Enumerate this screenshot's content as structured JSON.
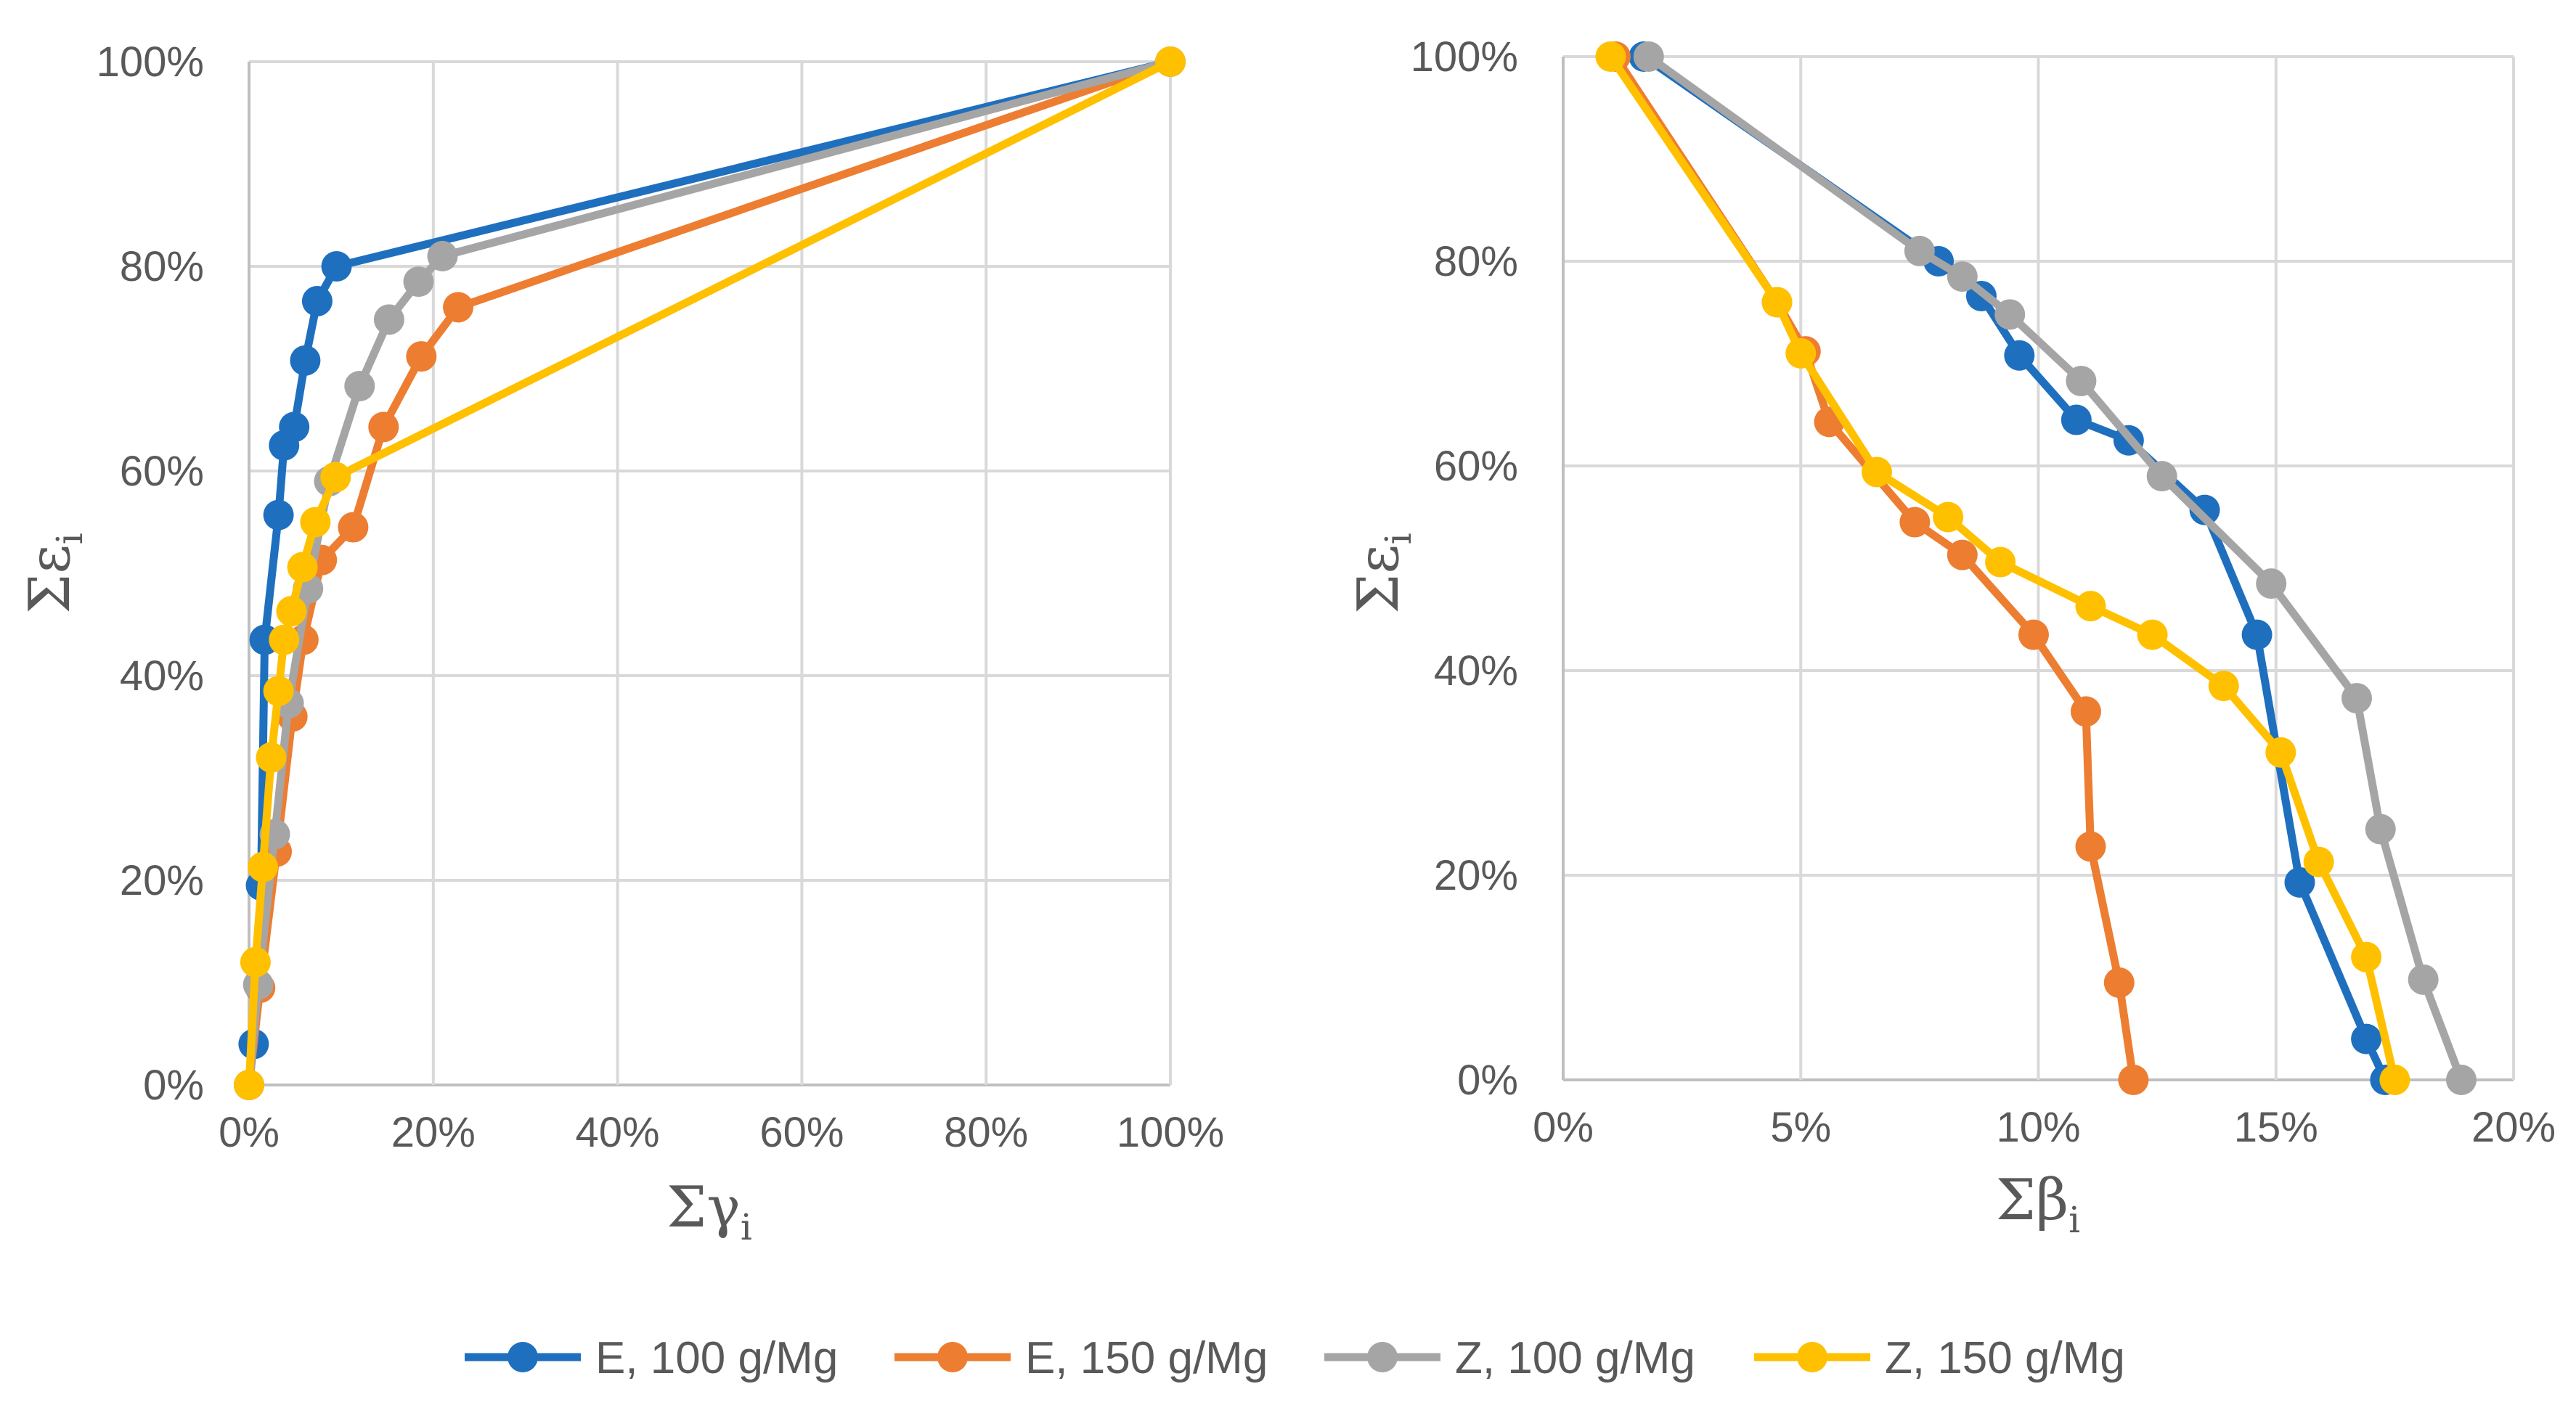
{
  "chart_data": [
    {
      "type": "line",
      "panel": "left",
      "xlabel": "Σγ",
      "xlabel_subscript": "i",
      "ylabel": "Σε",
      "ylabel_subscript": "i",
      "xlim": [
        0,
        100
      ],
      "ylim": [
        0,
        100
      ],
      "x_ticks": [
        0,
        20,
        40,
        60,
        80,
        100
      ],
      "x_tick_labels": [
        "0%",
        "20%",
        "40%",
        "60%",
        "80%",
        "100%"
      ],
      "y_ticks": [
        0,
        20,
        40,
        60,
        80,
        100
      ],
      "y_tick_labels": [
        "0%",
        "20%",
        "40%",
        "60%",
        "80%",
        "100%"
      ],
      "grid": true,
      "series": [
        {
          "name": "E, 100 g/Mg",
          "color": "#1f6fbf",
          "points": [
            [
              0,
              0
            ],
            [
              0.5,
              4
            ],
            [
              1.3,
              19.5
            ],
            [
              1.7,
              43.5
            ],
            [
              3.2,
              55.7
            ],
            [
              3.8,
              62.5
            ],
            [
              4.9,
              64.3
            ],
            [
              6.1,
              70.8
            ],
            [
              7.4,
              76.6
            ],
            [
              9.5,
              80
            ],
            [
              100,
              100
            ]
          ]
        },
        {
          "name": "E, 150 g/Mg",
          "color": "#ed7d31",
          "points": [
            [
              0,
              0
            ],
            [
              1.2,
              9.5
            ],
            [
              3.0,
              22.8
            ],
            [
              4.7,
              36.0
            ],
            [
              5.9,
              43.5
            ],
            [
              7.9,
              51.3
            ],
            [
              11.3,
              54.5
            ],
            [
              14.6,
              64.3
            ],
            [
              18.7,
              71.2
            ],
            [
              22.7,
              76.0
            ],
            [
              100,
              100
            ]
          ]
        },
        {
          "name": "Z, 100 g/Mg",
          "color": "#a5a5a5",
          "points": [
            [
              0,
              0
            ],
            [
              1.0,
              9.8
            ],
            [
              2.8,
              24.5
            ],
            [
              4.3,
              37.3
            ],
            [
              6.4,
              48.5
            ],
            [
              8.7,
              59.0
            ],
            [
              12.0,
              68.3
            ],
            [
              15.2,
              74.8
            ],
            [
              18.4,
              78.5
            ],
            [
              21.0,
              81.0
            ],
            [
              100,
              100
            ]
          ]
        },
        {
          "name": "Z, 150 g/Mg",
          "color": "#ffc000",
          "points": [
            [
              0,
              0
            ],
            [
              0.7,
              12.0
            ],
            [
              1.5,
              21.3
            ],
            [
              2.4,
              32.0
            ],
            [
              3.2,
              38.5
            ],
            [
              3.8,
              43.5
            ],
            [
              4.6,
              46.3
            ],
            [
              5.8,
              50.6
            ],
            [
              7.2,
              55.0
            ],
            [
              9.4,
              59.4
            ],
            [
              100,
              100
            ]
          ]
        }
      ]
    },
    {
      "type": "line",
      "panel": "right",
      "xlabel": "Σβ",
      "xlabel_subscript": "i",
      "ylabel": "Σε",
      "ylabel_subscript": "i",
      "xlim": [
        0,
        20
      ],
      "ylim": [
        0,
        100
      ],
      "x_ticks": [
        0,
        5,
        10,
        15,
        20
      ],
      "x_tick_labels": [
        "0%",
        "5%",
        "10%",
        "15%",
        "20%"
      ],
      "y_ticks": [
        0,
        20,
        40,
        60,
        80,
        100
      ],
      "y_tick_labels": [
        "0%",
        "20%",
        "40%",
        "60%",
        "80%",
        "100%"
      ],
      "grid": true,
      "series": [
        {
          "name": "E, 100 g/Mg",
          "color": "#1f6fbf",
          "points": [
            [
              1.7,
              100
            ],
            [
              7.9,
              80.0
            ],
            [
              8.8,
              76.6
            ],
            [
              9.6,
              70.8
            ],
            [
              10.8,
              64.5
            ],
            [
              11.9,
              62.5
            ],
            [
              13.5,
              55.7
            ],
            [
              14.6,
              43.5
            ],
            [
              15.5,
              19.3
            ],
            [
              16.9,
              4.0
            ],
            [
              17.3,
              0
            ]
          ]
        },
        {
          "name": "E, 150 g/Mg",
          "color": "#ed7d31",
          "points": [
            [
              1.1,
              100
            ],
            [
              4.5,
              76.0
            ],
            [
              5.1,
              71.2
            ],
            [
              5.6,
              64.3
            ],
            [
              7.4,
              54.5
            ],
            [
              8.4,
              51.3
            ],
            [
              9.9,
              43.5
            ],
            [
              11.0,
              36.0
            ],
            [
              11.1,
              22.8
            ],
            [
              11.7,
              9.5
            ],
            [
              12.0,
              0
            ]
          ]
        },
        {
          "name": "Z, 100 g/Mg",
          "color": "#a5a5a5",
          "points": [
            [
              1.8,
              100
            ],
            [
              7.5,
              81.0
            ],
            [
              8.4,
              78.5
            ],
            [
              9.4,
              74.8
            ],
            [
              10.9,
              68.3
            ],
            [
              12.6,
              59.0
            ],
            [
              14.9,
              48.5
            ],
            [
              16.7,
              37.3
            ],
            [
              17.2,
              24.5
            ],
            [
              18.1,
              9.8
            ],
            [
              18.9,
              0
            ]
          ]
        },
        {
          "name": "Z, 150 g/Mg",
          "color": "#ffc000",
          "points": [
            [
              1.0,
              100
            ],
            [
              4.5,
              76.0
            ],
            [
              5.0,
              71.0
            ],
            [
              6.6,
              59.4
            ],
            [
              8.1,
              55.0
            ],
            [
              9.2,
              50.6
            ],
            [
              11.1,
              46.3
            ],
            [
              12.4,
              43.5
            ],
            [
              13.9,
              38.5
            ],
            [
              15.1,
              32.0
            ],
            [
              15.9,
              21.3
            ],
            [
              16.9,
              12.0
            ],
            [
              17.5,
              0
            ]
          ]
        }
      ]
    }
  ],
  "legend": {
    "placement": "bottom-center",
    "items": [
      {
        "label": "E, 100 g/Mg",
        "color": "#1f6fbf"
      },
      {
        "label": "E, 150 g/Mg",
        "color": "#ed7d31"
      },
      {
        "label": "Z, 100 g/Mg",
        "color": "#a5a5a5"
      },
      {
        "label": "Z, 150 g/Mg",
        "color": "#ffc000"
      }
    ]
  }
}
